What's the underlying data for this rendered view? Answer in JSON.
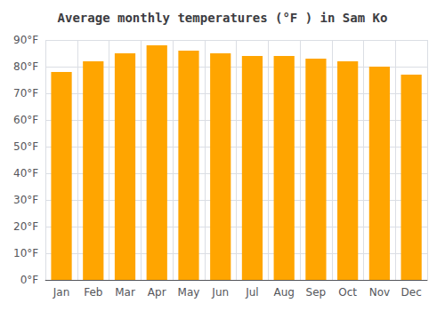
{
  "chart_data": {
    "type": "bar",
    "title": "Average monthly temperatures (°F ) in Sam Ko",
    "categories": [
      "Jan",
      "Feb",
      "Mar",
      "Apr",
      "May",
      "Jun",
      "Jul",
      "Aug",
      "Sep",
      "Oct",
      "Nov",
      "Dec"
    ],
    "values": [
      78,
      82,
      85,
      88,
      86,
      85,
      84,
      84,
      83,
      82,
      80,
      77
    ],
    "color": "#FFA500",
    "ylim": [
      0,
      90
    ],
    "yticks": [
      {
        "value": 0,
        "label": "0°F"
      },
      {
        "value": 10,
        "label": "10°F"
      },
      {
        "value": 20,
        "label": "20°F"
      },
      {
        "value": 30,
        "label": "30°F"
      },
      {
        "value": 40,
        "label": "40°F"
      },
      {
        "value": 50,
        "label": "50°F"
      },
      {
        "value": 60,
        "label": "60°F"
      },
      {
        "value": 70,
        "label": "70°F"
      },
      {
        "value": 80,
        "label": "80°F"
      },
      {
        "value": 90,
        "label": "90°F"
      }
    ],
    "grid": true
  }
}
